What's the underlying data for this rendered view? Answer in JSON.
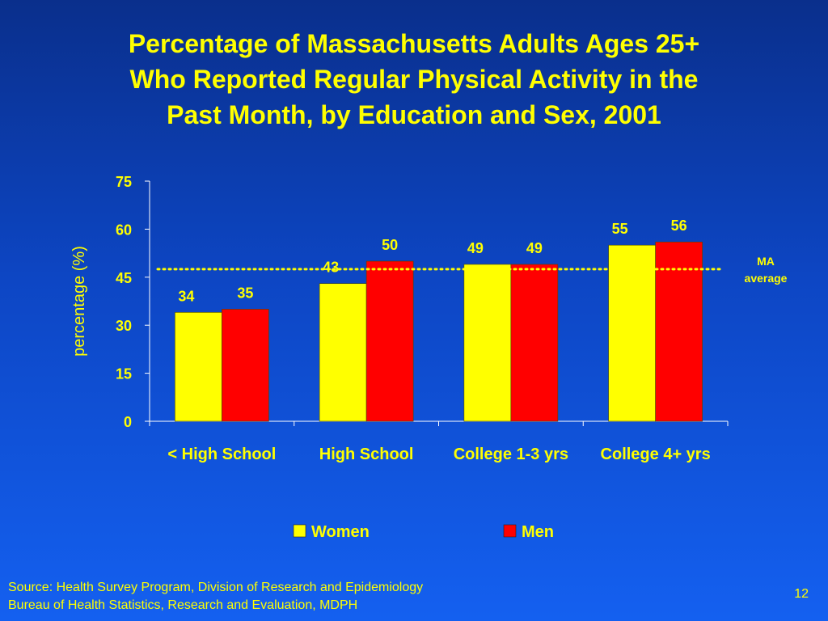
{
  "slide": {
    "title_lines": [
      "Percentage of Massachusetts Adults Ages 25+",
      "Who Reported Regular Physical Activity in the",
      "Past Month, by Education and Sex, 2001"
    ],
    "source_lines": [
      "Source: Health Survey Program, Division of Research and Epidemiology",
      "Bureau of Health Statistics, Research and Evaluation, MDPH"
    ],
    "page_number": "12"
  },
  "chart_data": {
    "type": "bar",
    "categories": [
      "< High School",
      "High School",
      "College 1-3 yrs",
      "College 4+ yrs"
    ],
    "series": [
      {
        "name": "Women",
        "values": [
          34,
          43,
          49,
          55
        ],
        "color": "#ffff00"
      },
      {
        "name": "Men",
        "values": [
          35,
          50,
          49,
          56
        ],
        "color": "#ff0000"
      }
    ],
    "ylabel": "percentage (%)",
    "ylim": [
      0,
      75
    ],
    "yticks": [
      0,
      15,
      30,
      45,
      60,
      75
    ],
    "reference_line": {
      "label": "MA average",
      "value": 47.5,
      "style": "dotted",
      "color": "#ffff00"
    },
    "grid": false,
    "legend_position": "bottom",
    "axis_text_color": "#ffff00",
    "label_color": "#ffff00"
  }
}
